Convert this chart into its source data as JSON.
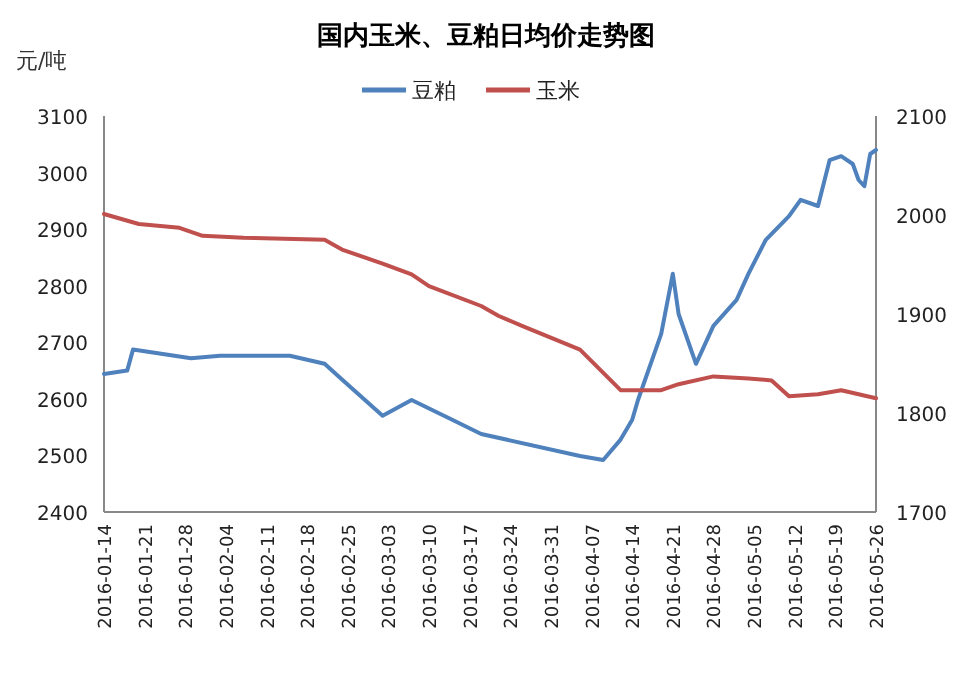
{
  "chart_data": {
    "type": "line",
    "title": "国内玉米、豆粕日均价走势图",
    "ylabel": "元/吨",
    "legend": "top",
    "grid": false,
    "marker": "none",
    "line_style": "solid",
    "xlim": [
      "2016-01-14",
      "2016-05-26"
    ],
    "xticks": [
      "2016-01-14",
      "2016-01-21",
      "2016-01-28",
      "2016-02-04",
      "2016-02-11",
      "2016-02-18",
      "2016-02-25",
      "2016-03-03",
      "2016-03-10",
      "2016-03-17",
      "2016-03-24",
      "2016-03-31",
      "2016-04-07",
      "2016-04-14",
      "2016-04-21",
      "2016-04-28",
      "2016-05-05",
      "2016-05-12",
      "2016-05-19",
      "2016-05-26"
    ],
    "ylim": [
      2400,
      3100
    ],
    "yticks": [
      2400,
      2500,
      2600,
      2700,
      2800,
      2900,
      3000,
      3100
    ],
    "y2lim": [
      1700,
      2100
    ],
    "y2ticks": [
      1700,
      1800,
      1900,
      2000,
      2100
    ],
    "series": [
      {
        "name": "豆粕",
        "color": "#4f81bd",
        "x": [
          "2016-01-14",
          "2016-01-18",
          "2016-01-19",
          "2016-01-29",
          "2016-02-03",
          "2016-02-15",
          "2016-02-21",
          "2016-02-24",
          "2016-03-02",
          "2016-03-07",
          "2016-03-14",
          "2016-03-19",
          "2016-04-05",
          "2016-04-09",
          "2016-04-12",
          "2016-04-14",
          "2016-04-15",
          "2016-04-19",
          "2016-04-21",
          "2016-04-22",
          "2016-04-25",
          "2016-04-28",
          "2016-05-02",
          "2016-05-04",
          "2016-05-07",
          "2016-05-11",
          "2016-05-13",
          "2016-05-16",
          "2016-05-18",
          "2016-05-20",
          "2016-05-22",
          "2016-05-23",
          "2016-05-24",
          "2016-05-25",
          "2016-05-26"
        ],
        "values": [
          2644,
          2650,
          2687,
          2672,
          2676,
          2676,
          2662,
          2634,
          2570,
          2598,
          2563,
          2538,
          2499,
          2492,
          2528,
          2563,
          2598,
          2715,
          2821,
          2750,
          2662,
          2729,
          2775,
          2821,
          2881,
          2923,
          2952,
          2941,
          3022,
          3029,
          3015,
          2987,
          2976,
          3033,
          3040
        ]
      },
      {
        "name": "玉米",
        "color": "#c0504d",
        "axis": "y2",
        "x": [
          "2016-01-14",
          "2016-01-20",
          "2016-01-27",
          "2016-01-31",
          "2016-02-07",
          "2016-02-21",
          "2016-02-24",
          "2016-03-02",
          "2016-03-07",
          "2016-03-10",
          "2016-03-19",
          "2016-03-22",
          "2016-03-26",
          "2016-04-05",
          "2016-04-12",
          "2016-04-19",
          "2016-04-22",
          "2016-04-28",
          "2016-05-04",
          "2016-05-08",
          "2016-05-11",
          "2016-05-16",
          "2016-05-20",
          "2016-05-26"
        ],
        "values": [
          2001,
          1991,
          1987,
          1979,
          1977,
          1975,
          1965,
          1951,
          1940,
          1928,
          1908,
          1898,
          1888,
          1864,
          1823,
          1823,
          1829,
          1837,
          1835,
          1833,
          1817,
          1819,
          1823,
          1815
        ]
      }
    ]
  }
}
